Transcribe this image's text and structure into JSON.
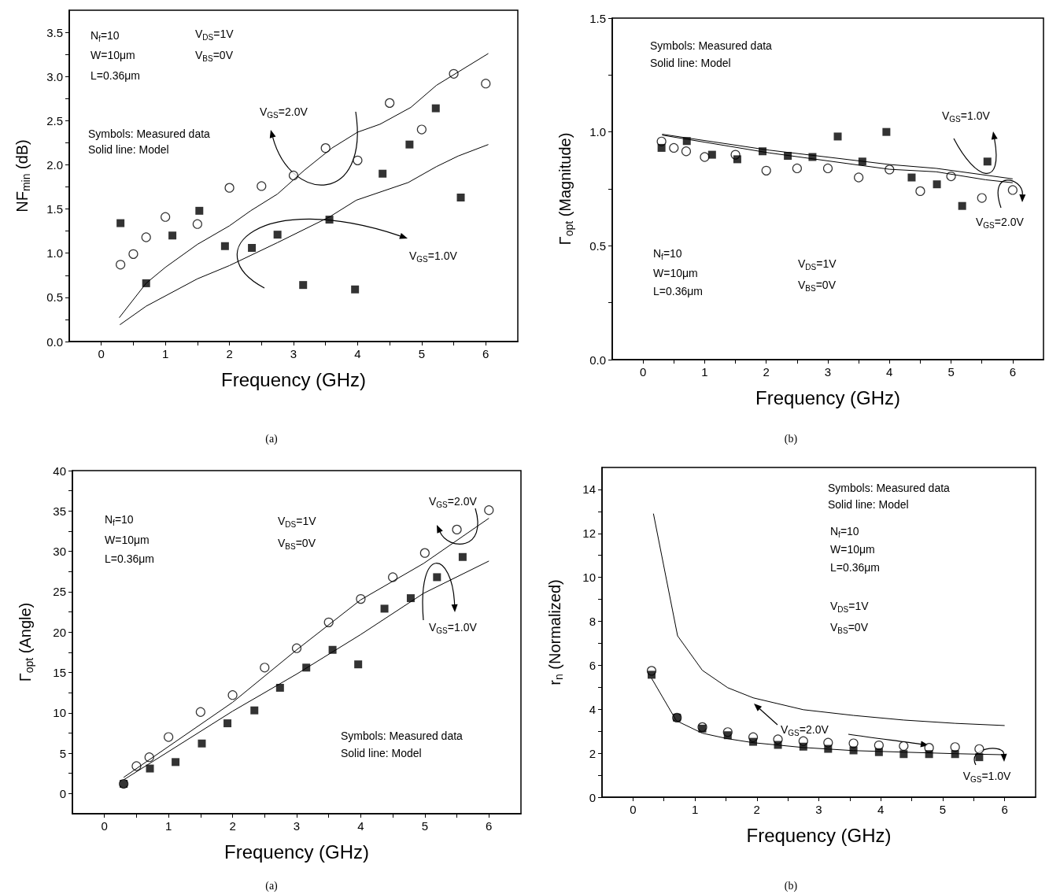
{
  "chart_data": [
    {
      "type": "scatter",
      "title": "(a)",
      "xlabel": "Frequency (GHz)",
      "ylabel": "NF$_{min}$ (dB)",
      "xlim": [
        -0.5,
        6.5
      ],
      "ylim": [
        0,
        3.75
      ],
      "xticks": [
        0,
        {
          "value": 0.5,
          "label": null
        },
        1,
        {
          "value": 1.5,
          "label": null
        },
        2,
        {
          "value": 2.5,
          "label": null
        },
        3,
        {
          "value": 3.5,
          "label": null
        },
        4,
        {
          "value": 4.5,
          "label": null
        },
        5,
        {
          "value": 5.5,
          "label": null
        },
        6
      ],
      "yticks": [
        {
          "value": 0,
          "label": "0.0"
        },
        {
          "value": 0.25,
          "label": null
        },
        {
          "value": 0.5,
          "label": "0.5"
        },
        {
          "value": 0.75,
          "label": null
        },
        {
          "value": 1,
          "label": "1.0"
        },
        {
          "value": 1.25,
          "label": null
        },
        {
          "value": 1.5,
          "label": "1.5"
        },
        {
          "value": 1.75,
          "label": null
        },
        {
          "value": 2,
          "label": "2.0"
        },
        {
          "value": 2.25,
          "label": null
        },
        {
          "value": 2.5,
          "label": "2.5"
        },
        {
          "value": 2.75,
          "label": null
        },
        {
          "value": 3,
          "label": "3.0"
        },
        {
          "value": 3.25,
          "label": null
        },
        {
          "value": 3.5,
          "label": "3.5"
        }
      ],
      "annotations": [
        "N$_{f}$=10",
        "W=10μm",
        "L=0.36μm",
        "V$_{DS}$=1V",
        "V$_{BS}$=0V",
        "Symbols: Measured data",
        "Solid line: Model",
        "V$_{GS}$=2.0V",
        "V$_{GS}$=1.0V"
      ],
      "series": [
        {
          "type": "line",
          "color": "#000000",
          "marker": "none",
          "x": [
            0.28,
            0.7,
            1.0,
            1.5,
            2.0,
            2.33,
            2.75,
            3.17,
            3.6,
            4.0,
            4.35,
            4.83,
            5.23,
            6.04
          ],
          "values": [
            0.27,
            0.66,
            0.84,
            1.1,
            1.31,
            1.48,
            1.67,
            1.94,
            2.19,
            2.37,
            2.46,
            2.65,
            2.9,
            3.26
          ]
        },
        {
          "type": "line",
          "color": "#000000",
          "marker": "none",
          "x": [
            0.29,
            0.7,
            1.5,
            2.0,
            2.75,
            3.56,
            3.98,
            4.79,
            5.23,
            5.57,
            6.04
          ],
          "values": [
            0.19,
            0.4,
            0.71,
            0.86,
            1.12,
            1.41,
            1.6,
            1.8,
            1.98,
            2.1,
            2.23
          ]
        },
        {
          "type": "scatter",
          "color": "#000000",
          "marker": "circle",
          "x": [
            0.3,
            0.5,
            0.7,
            1.0,
            1.5,
            2.0,
            2.5,
            3.0,
            3.5,
            4.0,
            4.5,
            5.0,
            5.5,
            6.0
          ],
          "values": [
            0.87,
            0.99,
            1.18,
            1.41,
            1.33,
            1.74,
            1.76,
            1.88,
            2.19,
            2.05,
            2.7,
            2.4,
            3.03,
            2.92
          ]
        },
        {
          "type": "scatter",
          "color": "#000000",
          "marker": "square",
          "x": [
            0.3,
            0.7,
            1.11,
            1.53,
            1.93,
            2.35,
            2.75,
            3.15,
            3.56,
            3.96,
            4.39,
            4.81,
            5.22,
            5.61
          ],
          "values": [
            1.34,
            0.66,
            1.2,
            1.48,
            1.08,
            1.06,
            1.21,
            0.64,
            1.38,
            0.59,
            1.9,
            2.23,
            2.64,
            1.63
          ]
        }
      ]
    },
    {
      "type": "scatter",
      "title": "(b)",
      "xlabel": "Frequency (GHz)",
      "ylabel": "Γ$_{opt}$ (Magnitude)",
      "xlim": [
        -0.5,
        6.5
      ],
      "ylim": [
        0,
        1.5
      ],
      "xticks": [
        0,
        {
          "value": 0.5,
          "label": null
        },
        1,
        {
          "value": 1.5,
          "label": null
        },
        2,
        {
          "value": 2.5,
          "label": null
        },
        3,
        {
          "value": 3.5,
          "label": null
        },
        4,
        {
          "value": 4.5,
          "label": null
        },
        5,
        {
          "value": 5.5,
          "label": null
        },
        6
      ],
      "yticks": [
        {
          "value": 0,
          "label": "0.0"
        },
        {
          "value": 0.25,
          "label": null
        },
        {
          "value": 0.5,
          "label": "0.5"
        },
        {
          "value": 0.75,
          "label": null
        },
        {
          "value": 1,
          "label": "1.0"
        },
        {
          "value": 1.25,
          "label": null
        },
        {
          "value": 1.5,
          "label": "1.5"
        }
      ],
      "annotations": [
        "N$_{f}$=10",
        "W=10μm",
        "L=0.36μm",
        "V$_{DS}$=1V",
        "V$_{BS}$=0V",
        "Symbols: Measured data",
        "Solid line: Model",
        "V$_{GS}$=2.0V",
        "V$_{GS}$=1.0V"
      ],
      "series": [
        {
          "type": "line",
          "color": "#000000",
          "marker": "none",
          "x": [
            0.31,
            2.05,
            4.0,
            4.76,
            6.0
          ],
          "values": [
            0.99,
            0.92,
            0.857,
            0.84,
            0.794
          ]
        },
        {
          "type": "line",
          "color": "#000000",
          "marker": "none",
          "x": [
            0.31,
            2.05,
            4.0,
            4.76,
            5.56,
            6.0
          ],
          "values": [
            0.986,
            0.908,
            0.836,
            0.825,
            0.79,
            0.777
          ]
        },
        {
          "type": "scatter",
          "color": "#000000",
          "marker": "circle",
          "x": [
            0.3,
            0.5,
            0.7,
            1.0,
            1.5,
            2.0,
            2.5,
            3.0,
            3.5,
            4.0,
            4.5,
            5.0,
            5.5,
            6.0
          ],
          "values": [
            0.958,
            0.93,
            0.915,
            0.89,
            0.9,
            0.83,
            0.84,
            0.84,
            0.8,
            0.835,
            0.74,
            0.805,
            0.71,
            0.745
          ]
        },
        {
          "type": "scatter",
          "color": "#000000",
          "marker": "square",
          "x": [
            0.3,
            0.71,
            1.12,
            1.53,
            1.94,
            2.35,
            2.75,
            3.16,
            3.56,
            3.95,
            4.36,
            4.77,
            5.18,
            5.59
          ],
          "values": [
            0.93,
            0.96,
            0.9,
            0.88,
            0.915,
            0.895,
            0.89,
            0.98,
            0.87,
            1.0,
            0.8,
            0.77,
            0.675,
            0.87
          ]
        }
      ]
    },
    {
      "type": "scatter",
      "title": "(a)",
      "xlabel": "Frequency (GHz)",
      "ylabel": "Γ$_{opt}$ (Angle)",
      "xlim": [
        -0.5,
        6.5
      ],
      "ylim": [
        -2.5,
        40
      ],
      "xticks": [
        0,
        {
          "value": 0.5,
          "label": null
        },
        1,
        {
          "value": 1.5,
          "label": null
        },
        2,
        {
          "value": 2.5,
          "label": null
        },
        3,
        {
          "value": 3.5,
          "label": null
        },
        4,
        {
          "value": 4.5,
          "label": null
        },
        5,
        {
          "value": 5.5,
          "label": null
        },
        6
      ],
      "yticks": [
        0,
        {
          "value": 2.5,
          "label": null
        },
        5,
        {
          "value": 7.5,
          "label": null
        },
        10,
        {
          "value": 12.5,
          "label": null
        },
        15,
        {
          "value": 17.5,
          "label": null
        },
        20,
        {
          "value": 22.5,
          "label": null
        },
        25,
        {
          "value": 27.5,
          "label": null
        },
        30,
        {
          "value": 32.5,
          "label": null
        },
        35,
        {
          "value": 37.5,
          "label": null
        },
        40
      ],
      "annotations": [
        "N$_{f}$=10",
        "W=10μm",
        "L=0.36μm",
        "V$_{DS}$=1V",
        "V$_{BS}$=0V",
        "Symbols: Measured data",
        "Solid line: Model",
        "V$_{GS}$=2.0V",
        "V$_{GS}$=1.0V"
      ],
      "series": [
        {
          "type": "line",
          "color": "#000000",
          "marker": "none",
          "x": [
            0.3,
            2.0,
            3.0,
            4.0,
            4.98,
            6.0
          ],
          "values": [
            2.0,
            11.3,
            17.8,
            24.0,
            28.5,
            34.1
          ]
        },
        {
          "type": "line",
          "color": "#000000",
          "marker": "none",
          "x": [
            0.3,
            2.0,
            3.0,
            4.0,
            4.98,
            6.0
          ],
          "values": [
            1.7,
            10.2,
            14.8,
            19.7,
            24.8,
            28.8
          ]
        },
        {
          "type": "scatter",
          "color": "#000000",
          "marker": "circle",
          "x": [
            0.3,
            0.5,
            0.7,
            1.0,
            1.5,
            2.0,
            2.5,
            3.0,
            3.5,
            4.0,
            4.5,
            5.0,
            5.5,
            6.0
          ],
          "values": [
            1.2,
            3.4,
            4.5,
            7.0,
            10.1,
            12.2,
            15.6,
            18.0,
            21.2,
            24.1,
            26.8,
            29.8,
            32.7,
            35.1
          ]
        },
        {
          "type": "scatter",
          "color": "#000000",
          "marker": "square",
          "x": [
            0.3,
            0.71,
            1.11,
            1.52,
            1.92,
            2.34,
            2.74,
            3.15,
            3.56,
            3.96,
            4.37,
            4.78,
            5.19,
            5.59
          ],
          "values": [
            1.2,
            3.1,
            3.9,
            6.2,
            8.7,
            10.3,
            13.1,
            15.6,
            17.8,
            16.0,
            22.9,
            24.2,
            26.8,
            29.3
          ]
        }
      ]
    },
    {
      "type": "scatter",
      "title": "(b)",
      "xlabel": "Frequency (GHz)",
      "ylabel": "r$_{n}$ (Normalized)",
      "xlim": [
        -0.5,
        6.5
      ],
      "ylim": [
        0,
        15
      ],
      "xticks": [
        0,
        {
          "value": 0.5,
          "label": null
        },
        1,
        {
          "value": 1.5,
          "label": null
        },
        2,
        {
          "value": 2.5,
          "label": null
        },
        3,
        {
          "value": 3.5,
          "label": null
        },
        4,
        {
          "value": 4.5,
          "label": null
        },
        5,
        {
          "value": 5.5,
          "label": null
        },
        6
      ],
      "yticks": [
        0,
        {
          "value": 1,
          "label": null
        },
        2,
        {
          "value": 3,
          "label": null
        },
        4,
        {
          "value": 5,
          "label": null
        },
        6,
        {
          "value": 7,
          "label": null
        },
        8,
        {
          "value": 9,
          "label": null
        },
        10,
        {
          "value": 11,
          "label": null
        },
        12,
        {
          "value": 13,
          "label": null
        },
        14
      ],
      "annotations": [
        "N$_{f}$=10",
        "W=10μm",
        "L=0.36μm",
        "V$_{DS}$=1V",
        "V$_{BS}$=0V",
        "Symbols: Measured data",
        "Solid line: Model",
        "V$_{GS}$=2.0V",
        {
          "text": "V$_{GS}$=1.0V",
          "x": 6.0,
          "y": 1.93
        }
      ],
      "series": [
        {
          "type": "line",
          "color": "#000000",
          "marker": "none",
          "x": [
            0.33,
            0.72,
            1.12,
            1.53,
            1.94,
            2.75,
            3.56,
            4.37,
            5.2,
            6.0
          ],
          "values": [
            12.9,
            7.34,
            5.77,
            4.98,
            4.52,
            3.98,
            3.72,
            3.51,
            3.36,
            3.26
          ]
        },
        {
          "type": "line",
          "color": "#000000",
          "marker": "none",
          "x": [
            0.3,
            0.7,
            1.12,
            1.53,
            1.94,
            2.75,
            3.56,
            4.37,
            5.2,
            6.0
          ],
          "values": [
            5.41,
            3.48,
            2.91,
            2.66,
            2.48,
            2.26,
            2.12,
            2.05,
            1.98,
            1.93
          ]
        },
        {
          "type": "scatter",
          "color": "#000000",
          "marker": "circle",
          "x": [
            0.3,
            0.71,
            1.12,
            1.53,
            1.94,
            2.34,
            2.75,
            3.15,
            3.56,
            3.97,
            4.37,
            4.78,
            5.2,
            5.59
          ],
          "values": [
            5.75,
            3.62,
            3.19,
            2.96,
            2.73,
            2.63,
            2.55,
            2.48,
            2.45,
            2.36,
            2.33,
            2.25,
            2.28,
            2.19
          ]
        },
        {
          "type": "scatter",
          "color": "#000000",
          "marker": "square",
          "x": [
            0.3,
            0.71,
            1.12,
            1.53,
            1.94,
            2.34,
            2.75,
            3.15,
            3.56,
            3.97,
            4.37,
            4.78,
            5.2,
            5.59
          ],
          "values": [
            5.57,
            3.62,
            3.12,
            2.82,
            2.52,
            2.38,
            2.3,
            2.2,
            2.13,
            2.05,
            1.96,
            1.96,
            1.96,
            1.82
          ]
        }
      ]
    }
  ]
}
